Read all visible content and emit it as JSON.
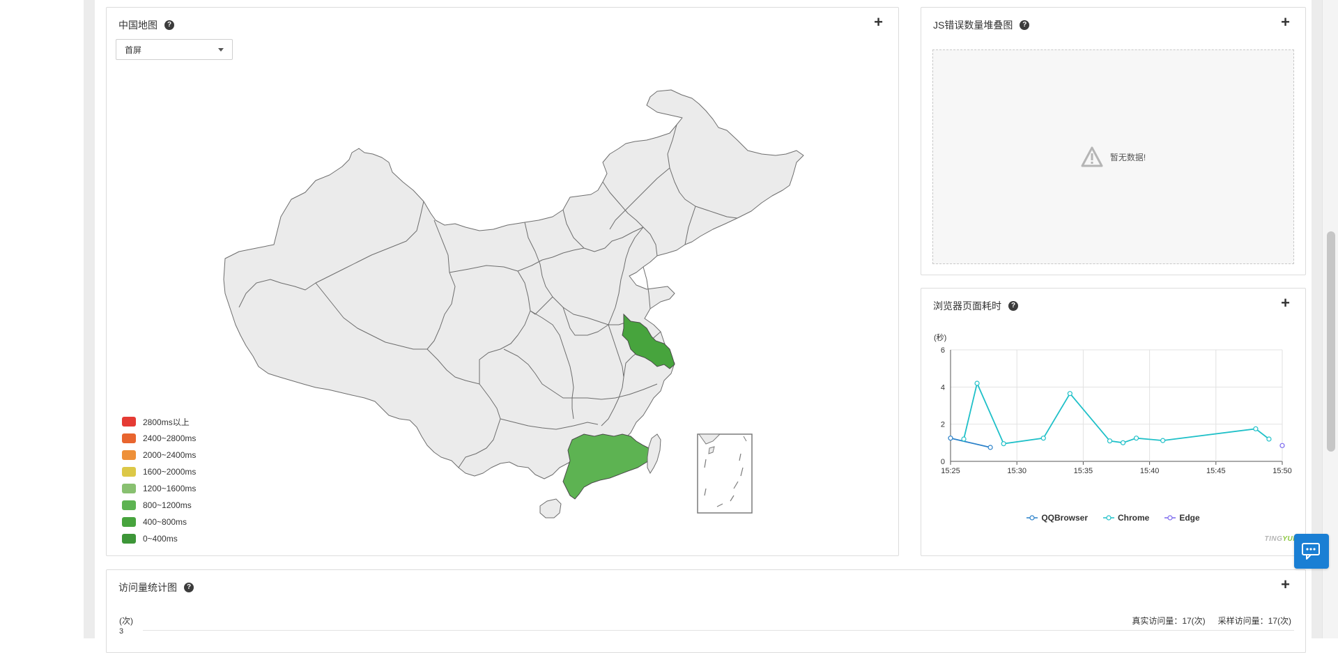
{
  "map_panel": {
    "title": "中国地图",
    "dropdown_value": "首屏",
    "legend": [
      {
        "label": "2800ms以上",
        "color": "#e53b34"
      },
      {
        "label": "2400~2800ms",
        "color": "#e8652f"
      },
      {
        "label": "2000~2400ms",
        "color": "#ee9039"
      },
      {
        "label": "1600~2000ms",
        "color": "#dcc847"
      },
      {
        "label": "1200~1600ms",
        "color": "#88c070"
      },
      {
        "label": "800~1200ms",
        "color": "#5db352"
      },
      {
        "label": "400~800ms",
        "color": "#47a43d"
      },
      {
        "label": "0~400ms",
        "color": "#3d9638"
      }
    ],
    "highlighted_regions": [
      {
        "region": "江苏",
        "range": "400~800ms"
      },
      {
        "region": "广东",
        "range": "800~1200ms"
      }
    ]
  },
  "js_panel": {
    "title": "JS错误数量堆叠图",
    "empty_text": "暂无数据!"
  },
  "browser_panel": {
    "title": "浏览器页面耗时",
    "watermark_a": "TING",
    "watermark_b": "YUN"
  },
  "visits_panel": {
    "title": "访问量统计图",
    "unit": "(次)",
    "y_top": "3",
    "real_visits": "真实访问量：17(次)",
    "sample_visits": "采样访问量：17(次)"
  },
  "colors": {
    "accent": "#1a7fd4",
    "chrome": "#1fc0c8",
    "qqbrowser": "#2980c9",
    "edge": "#7b68ee"
  },
  "chart_data": {
    "type": "line",
    "ylabel": "(秒)",
    "ylim": [
      0,
      6
    ],
    "yticks": [
      0,
      2,
      4,
      6
    ],
    "xlim": [
      "15:25",
      "15:50"
    ],
    "xticks": [
      "15:25",
      "15:30",
      "15:35",
      "15:40",
      "15:45",
      "15:50"
    ],
    "series": [
      {
        "name": "QQBrowser",
        "color": "#2980c9",
        "points": [
          [
            "15:25",
            1.25
          ],
          [
            "15:28",
            0.75
          ]
        ]
      },
      {
        "name": "Chrome",
        "color": "#1fc0c8",
        "points": [
          [
            "15:26",
            1.2
          ],
          [
            "15:27",
            4.2
          ],
          [
            "15:29",
            0.95
          ],
          [
            "15:32",
            1.25
          ],
          [
            "15:34",
            3.65
          ],
          [
            "15:37",
            1.1
          ],
          [
            "15:38",
            1.0
          ],
          [
            "15:39",
            1.25
          ],
          [
            "15:41",
            1.12
          ],
          [
            "15:48",
            1.75
          ],
          [
            "15:49",
            1.2
          ]
        ]
      },
      {
        "name": "Edge",
        "color": "#7b68ee",
        "points": [
          [
            "15:50",
            0.85
          ]
        ]
      }
    ]
  }
}
